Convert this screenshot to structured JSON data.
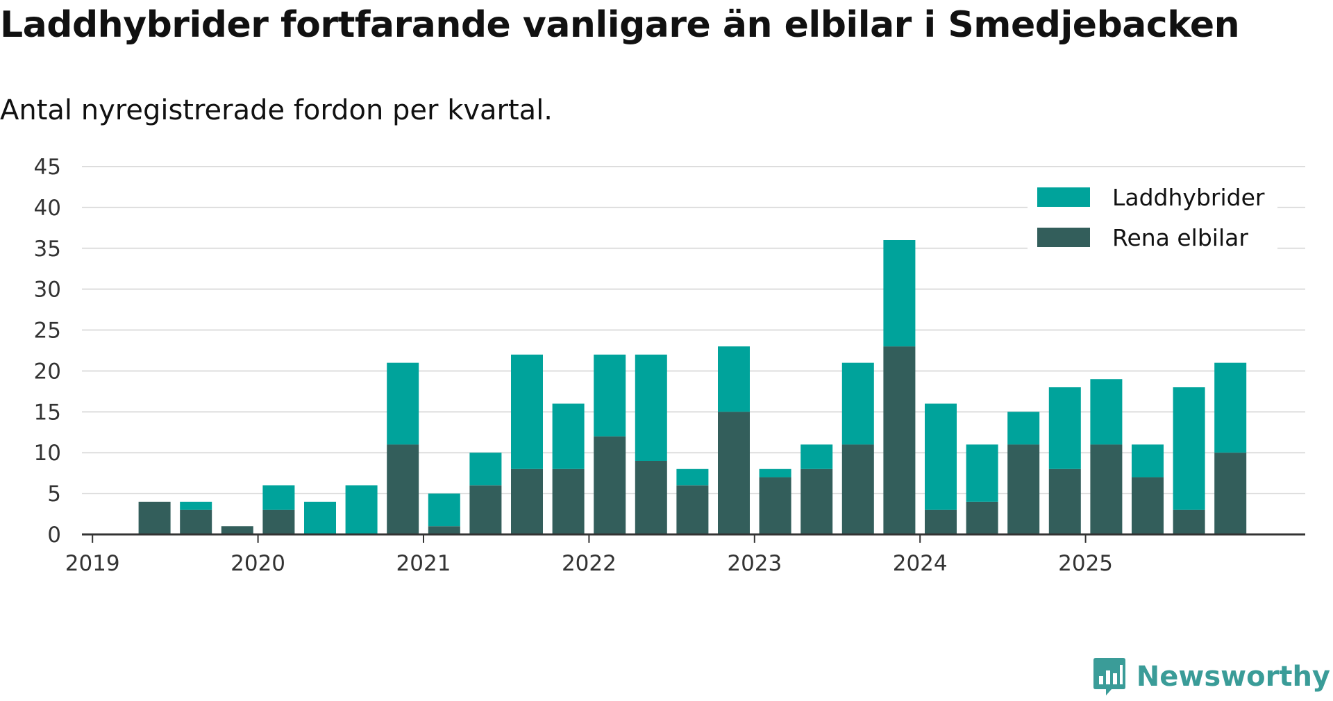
{
  "brand": {
    "name": "Newsworthy",
    "color": "#3a9c98"
  },
  "chart_data": {
    "type": "bar",
    "stacked": true,
    "title": "Laddhybrider fortfarande vanligare än elbilar i Smedjebacken",
    "subtitle": "Antal nyregistrerade fordon per kvartal.",
    "xlabel": "",
    "ylabel": "",
    "ylim": [
      0,
      45
    ],
    "yticks": [
      0,
      5,
      10,
      15,
      20,
      25,
      30,
      35,
      40,
      45
    ],
    "year_ticks": [
      "2019",
      "2020",
      "2021",
      "2022",
      "2023",
      "2024",
      "2025"
    ],
    "grid": true,
    "legend_position": "top-right",
    "categories": [
      "2019 Q1",
      "2019 Q2",
      "2019 Q3",
      "2019 Q4",
      "2020 Q1",
      "2020 Q2",
      "2020 Q3",
      "2020 Q4",
      "2021 Q1",
      "2021 Q2",
      "2021 Q3",
      "2021 Q4",
      "2022 Q1",
      "2022 Q2",
      "2022 Q3",
      "2022 Q4",
      "2023 Q1",
      "2023 Q2",
      "2023 Q3",
      "2023 Q4",
      "2024 Q1",
      "2024 Q2",
      "2024 Q3",
      "2024 Q4",
      "2025 Q1",
      "2025 Q2",
      "2025 Q3",
      "2025 Q4"
    ],
    "series": [
      {
        "name": "Rena elbilar",
        "color": "#335e5b",
        "values": [
          0,
          4,
          3,
          1,
          3,
          0,
          0,
          11,
          1,
          6,
          8,
          8,
          12,
          9,
          6,
          15,
          7,
          8,
          11,
          23,
          3,
          4,
          11,
          8,
          11,
          7,
          3,
          10
        ]
      },
      {
        "name": "Laddhybrider",
        "color": "#00a39b",
        "values": [
          0,
          0,
          1,
          0,
          3,
          4,
          6,
          10,
          4,
          4,
          14,
          8,
          10,
          13,
          2,
          8,
          1,
          3,
          10,
          13,
          13,
          7,
          4,
          10,
          8,
          4,
          15,
          11
        ]
      }
    ],
    "legend_order": [
      "Laddhybrider",
      "Rena elbilar"
    ]
  }
}
